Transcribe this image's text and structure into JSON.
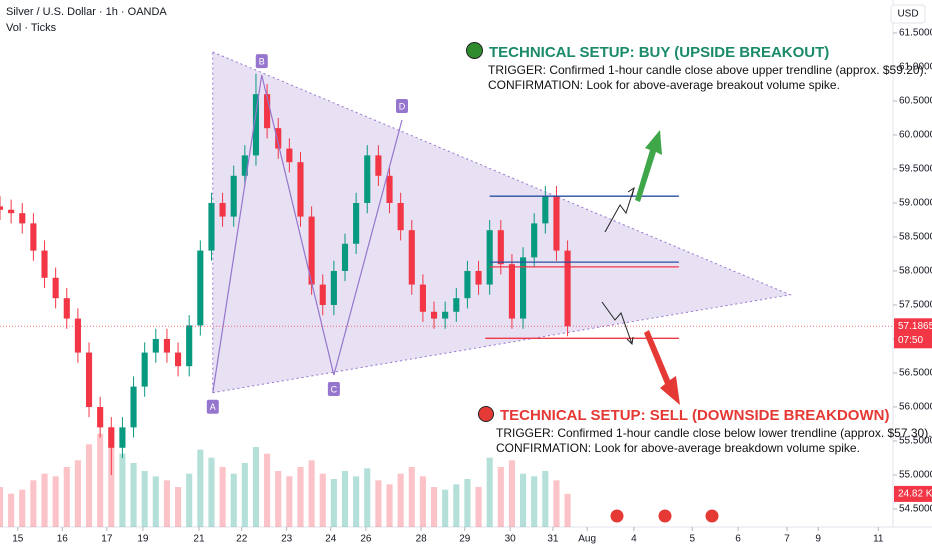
{
  "chart_data": {
    "type": "candlestick",
    "title": "Silver / U.S. Dollar · 1h · OANDA",
    "subtitle": "Vol · Ticks",
    "currency": "USD",
    "xlim": [
      -0.4,
      19.66
    ],
    "ylim": [
      54.235,
      61.985
    ],
    "xticks": [
      {
        "value": 0,
        "label": "15"
      },
      {
        "value": 1,
        "label": "16"
      },
      {
        "value": 2,
        "label": "17"
      },
      {
        "value": 2.81,
        "label": "19"
      },
      {
        "value": 4.07,
        "label": "21"
      },
      {
        "value": 5.03,
        "label": "22"
      },
      {
        "value": 6.04,
        "label": "23"
      },
      {
        "value": 7.03,
        "label": "24"
      },
      {
        "value": 7.82,
        "label": "26"
      },
      {
        "value": 9.06,
        "label": "28"
      },
      {
        "value": 10.04,
        "label": "29"
      },
      {
        "value": 11.06,
        "label": "30"
      },
      {
        "value": 12.02,
        "label": "31"
      },
      {
        "value": 12.79,
        "label": "Aug"
      },
      {
        "value": 13.84,
        "label": "4"
      },
      {
        "value": 15.15,
        "label": "5"
      },
      {
        "value": 16.18,
        "label": "6"
      },
      {
        "value": 17.28,
        "label": "7"
      },
      {
        "value": 17.98,
        "label": "9"
      },
      {
        "value": 19.33,
        "label": "11"
      }
    ],
    "yticks": [
      {
        "value": 54.5,
        "label": "54.50000"
      },
      {
        "value": 55,
        "label": "55.00000"
      },
      {
        "value": 55.5,
        "label": "55.50000"
      },
      {
        "value": 56,
        "label": "56.00000"
      },
      {
        "value": 56.5,
        "label": "56.50000"
      },
      {
        "value": 57,
        "label": "57.00000"
      },
      {
        "value": 57.5,
        "label": "57.50000"
      },
      {
        "value": 58,
        "label": "58.00000"
      },
      {
        "value": 58.5,
        "label": "58.50000"
      },
      {
        "value": 59,
        "label": "59.00000"
      },
      {
        "value": 59.5,
        "label": "59.50000"
      },
      {
        "value": 60,
        "label": "60.00000"
      },
      {
        "value": 60.5,
        "label": "60.50000"
      },
      {
        "value": 61,
        "label": "61.00000"
      },
      {
        "value": 61.5,
        "label": "61.50000"
      }
    ],
    "up_color": "#089981",
    "down_color": "#f23645",
    "x": [
      -0.4,
      -0.15,
      0.1,
      0.35,
      0.6,
      0.85,
      1.1,
      1.35,
      1.6,
      1.85,
      2.1,
      2.35,
      2.6,
      2.85,
      3.1,
      3.35,
      3.6,
      3.85,
      4.1,
      4.35,
      4.6,
      4.85,
      5.1,
      5.35,
      5.6,
      5.85,
      6.1,
      6.35,
      6.6,
      6.85,
      7.1,
      7.35,
      7.6,
      7.85,
      8.1,
      8.35,
      8.6,
      8.85,
      9.1,
      9.35,
      9.6,
      9.85,
      10.1,
      10.35,
      10.6,
      10.85,
      11.1,
      11.35,
      11.6,
      11.85,
      12.1,
      12.35
    ],
    "open": [
      58.95,
      58.9,
      58.85,
      58.7,
      58.3,
      57.9,
      57.6,
      57.3,
      56.8,
      56.0,
      55.7,
      55.4,
      55.7,
      56.3,
      56.8,
      57.0,
      56.8,
      56.6,
      57.2,
      58.3,
      59.0,
      58.8,
      59.4,
      59.7,
      60.6,
      60.1,
      59.8,
      59.6,
      58.8,
      57.8,
      57.5,
      58.0,
      58.4,
      59.0,
      59.7,
      59.4,
      59.0,
      58.6,
      57.8,
      57.4,
      57.3,
      57.4,
      57.6,
      58.0,
      57.8,
      58.6,
      58.1,
      57.3,
      58.2,
      58.7,
      59.1,
      58.3
    ],
    "high": [
      59.1,
      59.05,
      59.0,
      58.85,
      58.45,
      58.05,
      57.75,
      57.45,
      56.95,
      56.15,
      55.85,
      55.85,
      56.45,
      56.95,
      57.15,
      57.15,
      56.95,
      57.35,
      58.45,
      59.15,
      59.15,
      59.55,
      59.85,
      60.9,
      60.75,
      60.25,
      59.95,
      59.75,
      58.95,
      57.95,
      58.15,
      58.55,
      59.15,
      59.85,
      59.85,
      59.55,
      59.15,
      58.75,
      57.95,
      57.55,
      57.55,
      57.75,
      58.15,
      58.15,
      58.75,
      58.75,
      58.25,
      58.35,
      58.85,
      59.25,
      59.25,
      58.45
    ],
    "low": [
      58.75,
      58.7,
      58.55,
      58.15,
      57.75,
      57.45,
      57.15,
      56.65,
      55.85,
      55.55,
      55.0,
      55.25,
      55.55,
      56.15,
      56.65,
      56.65,
      56.45,
      56.45,
      57.05,
      58.15,
      58.65,
      58.65,
      59.25,
      59.55,
      59.95,
      59.65,
      59.45,
      58.65,
      57.65,
      57.35,
      57.35,
      57.85,
      58.25,
      58.85,
      59.25,
      58.85,
      58.45,
      57.65,
      57.25,
      57.15,
      57.15,
      57.25,
      57.45,
      57.65,
      57.65,
      57.95,
      57.15,
      57.15,
      58.05,
      58.55,
      58.15,
      57.04
    ],
    "close": [
      58.9,
      58.85,
      58.7,
      58.3,
      57.9,
      57.6,
      57.3,
      56.8,
      56.0,
      55.7,
      55.4,
      55.7,
      56.3,
      56.8,
      57.0,
      56.8,
      56.6,
      57.2,
      58.3,
      59.0,
      58.8,
      59.4,
      59.7,
      60.6,
      60.1,
      59.8,
      59.6,
      58.8,
      57.8,
      57.5,
      58.0,
      58.4,
      59.0,
      59.7,
      59.4,
      59.0,
      58.6,
      57.8,
      57.4,
      57.3,
      57.4,
      57.6,
      58.0,
      57.8,
      58.6,
      58.1,
      57.3,
      58.2,
      58.7,
      59.1,
      58.3,
      57.1865
    ],
    "volume": [
      30,
      25,
      28,
      35,
      40,
      38,
      45,
      50,
      62,
      70,
      75,
      55,
      48,
      42,
      38,
      35,
      30,
      40,
      58,
      52,
      45,
      40,
      48,
      60,
      55,
      42,
      38,
      45,
      50,
      40,
      36,
      42,
      38,
      44,
      35,
      32,
      40,
      45,
      38,
      30,
      28,
      32,
      36,
      30,
      52,
      45,
      50,
      40,
      38,
      42,
      35,
      24.82
    ],
    "last_price_label": "57.18650",
    "countdown": "07:50",
    "last_volume_label": "24.82 K",
    "pattern_points": [
      {
        "label": "A",
        "x": 4.38,
        "y": 56.21
      },
      {
        "label": "B",
        "x": 5.48,
        "y": 60.88
      },
      {
        "label": "C",
        "x": 7.1,
        "y": 56.47
      },
      {
        "label": "D",
        "x": 8.63,
        "y": 60.22
      }
    ],
    "triangle": {
      "x": [
        4.38,
        17.35,
        4.38
      ],
      "y": [
        61.22,
        57.65,
        56.21
      ]
    },
    "levels": [
      {
        "y": 59.1,
        "x": [
          10.6,
          14.85
        ],
        "color": "#2a4fa0"
      },
      {
        "y": 58.13,
        "x": [
          10.6,
          14.85
        ],
        "color": "#2a4fa0"
      },
      {
        "y": 58.06,
        "x": [
          10.6,
          14.85
        ],
        "color": "#f23645"
      },
      {
        "y": 57.01,
        "x": [
          10.5,
          14.85
        ],
        "color": "#f23645"
      }
    ],
    "buy": {
      "title": "TECHNICAL SETUP: BUY (UPSIDE BREAKOUT)",
      "trigger": "TRIGGER: Confirmed 1-hour candle close above upper trendline (approx. $59.20).",
      "confirmation": "CONFIRMATION: Look for above-average breakout volume spike."
    },
    "sell": {
      "title": "TECHNICAL SETUP: SELL (DOWNSIDE BREAKDOWN)",
      "trigger": "TRIGGER: Confirmed 1-hour candle close below lower trendline (approx. $57.30).",
      "confirmation": "CONFIRMATION: Look for above-average breakdown volume spike."
    }
  }
}
